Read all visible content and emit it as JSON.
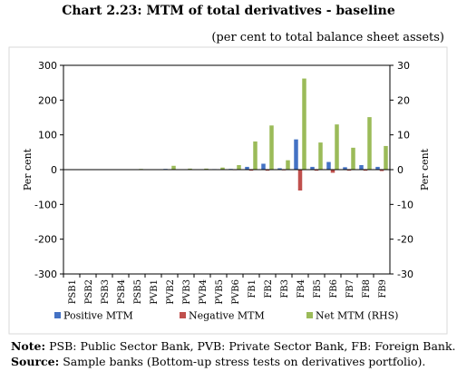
{
  "title": "Chart 2.23: MTM of total derivatives - baseline",
  "subtitle": "(per cent to total balance sheet assets)",
  "note_label": "Note:",
  "note_text": "PSB: Public Sector Bank, PVB: Private Sector Bank, FB: Foreign Bank.",
  "source_label": "Source:",
  "source_text": "Sample banks (Bottom-up stress tests on derivatives portfolio).",
  "colors": {
    "positive": "#4472c4",
    "negative": "#c0504d",
    "net": "#9bbb59"
  },
  "chart_data": {
    "type": "bar",
    "categories": [
      "PSB1",
      "PSB2",
      "PSB3",
      "PSB4",
      "PSB5",
      "PVB1",
      "PVB2",
      "PVB3",
      "PVB4",
      "PVB5",
      "PVB6",
      "FB1",
      "FB2",
      "FB3",
      "FB4",
      "FB5",
      "FB6",
      "FB7",
      "FB8",
      "FB9"
    ],
    "series": [
      {
        "name": "Positive MTM",
        "axis": "left",
        "values": [
          0.3,
          0.2,
          0.2,
          0.3,
          0.5,
          0.5,
          2,
          0.8,
          1,
          1.5,
          2,
          8,
          17,
          4,
          87,
          8,
          22,
          7,
          13,
          8
        ]
      },
      {
        "name": "Negative MTM",
        "axis": "left",
        "values": [
          -0.3,
          -0.2,
          -0.2,
          -0.3,
          -0.5,
          -0.5,
          -1,
          -0.8,
          -1,
          -1,
          -1.5,
          -3,
          -3,
          -2,
          -60,
          -3,
          -9,
          -3,
          -3,
          -4
        ]
      },
      {
        "name": "Net MTM (RHS)",
        "axis": "right",
        "values": [
          0.05,
          0.05,
          0.05,
          0.05,
          0.2,
          0.1,
          1.1,
          0.3,
          0.3,
          0.6,
          1.3,
          8.1,
          12.7,
          2.7,
          26.2,
          7.8,
          13,
          6.3,
          15.1,
          6.8
        ]
      }
    ],
    "ylabel": "Per cent",
    "y2label": "Per cent",
    "ylim": [
      -300,
      300
    ],
    "y2lim": [
      -30,
      30
    ],
    "yticks": [
      300,
      200,
      100,
      0,
      -100,
      -200,
      -300
    ],
    "y2ticks": [
      30,
      20,
      10,
      0,
      -10,
      -20,
      -30
    ],
    "grid": false,
    "legend_position": "bottom"
  }
}
